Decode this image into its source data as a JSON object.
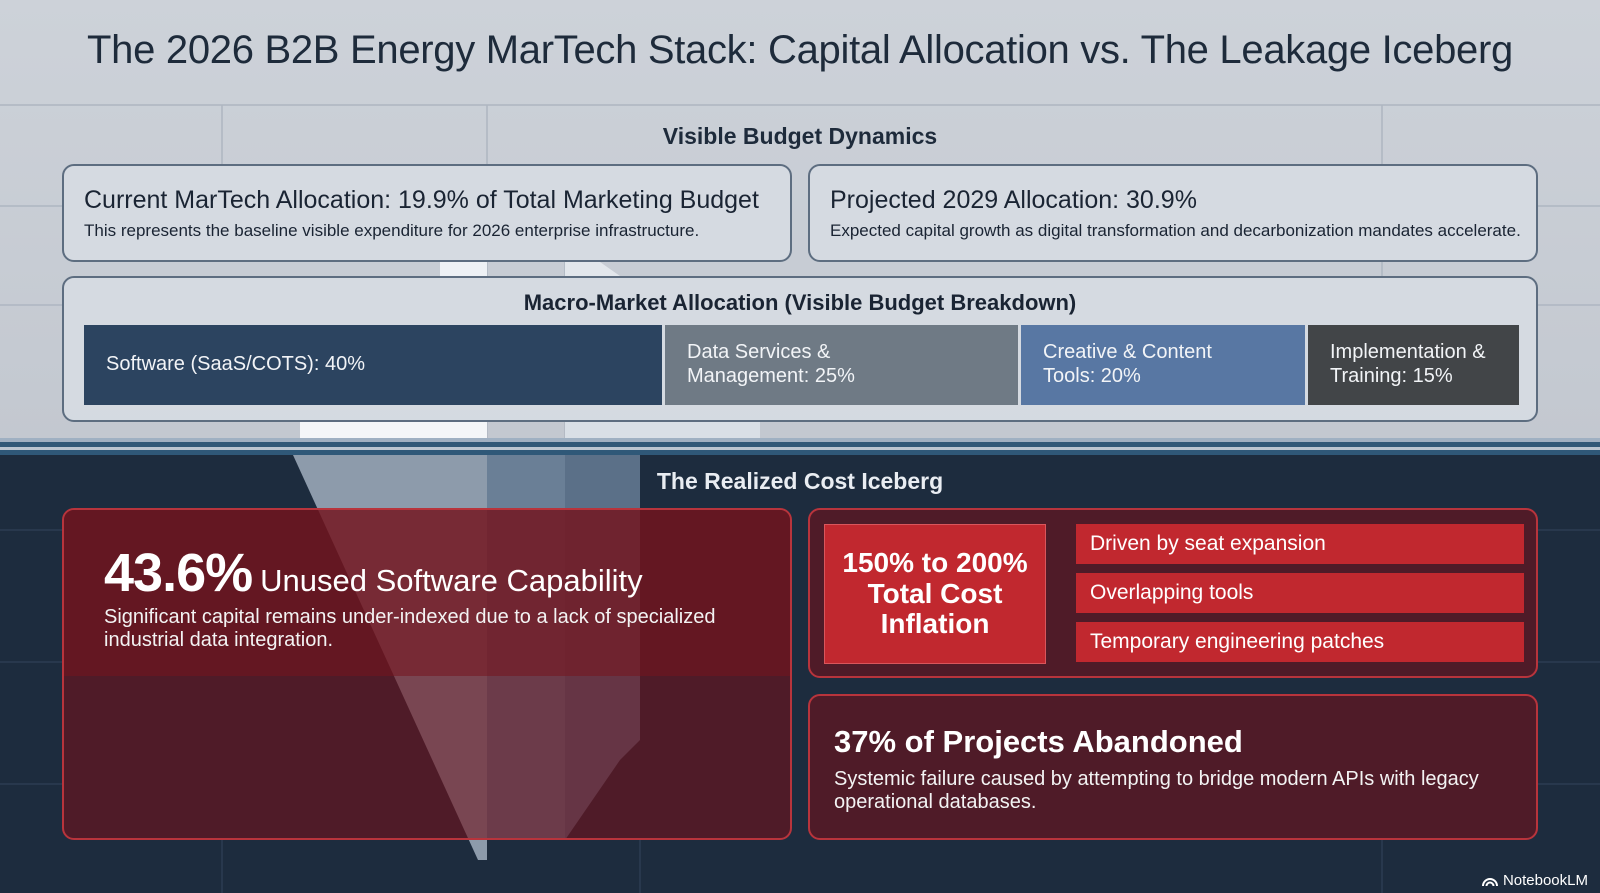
{
  "title": "The 2026 B2B Energy MarTech Stack: Capital Allocation vs. The Leakage Iceberg",
  "visible_section": {
    "label": "Visible Budget Dynamics",
    "current": {
      "title": "Current MarTech Allocation: 19.9% of Total Marketing Budget",
      "description": "This represents the baseline visible expenditure for 2026 enterprise infrastructure.",
      "percent": 19.9
    },
    "projected": {
      "title": "Projected 2029 Allocation: 30.9%",
      "description": "Expected capital growth as digital transformation and decarbonization mandates accelerate.",
      "percent": 30.9
    },
    "macro": {
      "title": "Macro-Market Allocation (Visible Budget Breakdown)",
      "segments": [
        {
          "label": "Software (SaaS/COTS): 40%",
          "value": 40,
          "color": "#2c4460"
        },
        {
          "label": "Data Services &\nManagement: 25%",
          "value": 25,
          "color": "#6f7a85"
        },
        {
          "label": "Creative & Content\nTools: 20%",
          "value": 20,
          "color": "#5877a3"
        },
        {
          "label": "Implementation &\nTraining: 15%",
          "value": 15,
          "color": "#424548"
        }
      ]
    }
  },
  "iceberg_section": {
    "label": "The Realized Cost Iceberg",
    "unused": {
      "stat": "43.6%",
      "title": "Unused Software Capability",
      "description": "Significant capital remains under-indexed due to a lack of specialized industrial data integration."
    },
    "inflation": {
      "headline": "150% to 200%\nTotal Cost\nInflation",
      "drivers": [
        "Driven by seat expansion",
        "Overlapping tools",
        "Temporary engineering patches"
      ]
    },
    "abandoned": {
      "title": "37% of Projects Abandoned",
      "description": "Systemic failure caused by attempting to bridge modern APIs with legacy operational databases."
    }
  },
  "brand": "NotebookLM",
  "colors": {
    "accent_red": "#c1282f",
    "deep_navy": "#1d2c3e",
    "steel_blue": "#5877a3"
  }
}
